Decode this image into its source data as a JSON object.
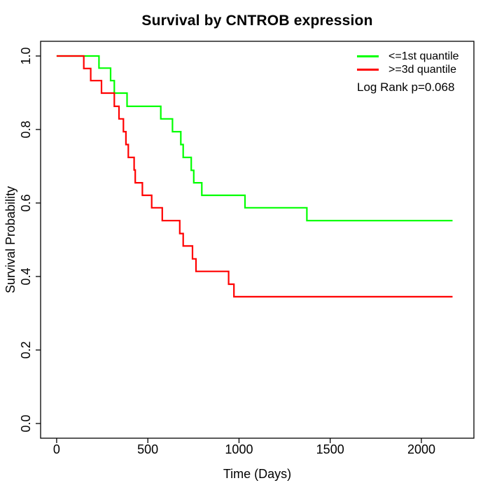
{
  "chart_data": {
    "type": "line",
    "subtype": "kaplan_meier_step",
    "title": "Survival by CNTROB expression",
    "xlabel": "Time (Days)",
    "ylabel": "Survival Probability",
    "xlim": [
      0,
      2200
    ],
    "ylim": [
      0.0,
      1.0
    ],
    "axis_padding_frac": 0.04,
    "grid": false,
    "axis_color": "#000000",
    "xticks": [
      {
        "v": 0,
        "label": "0"
      },
      {
        "v": 500,
        "label": "500"
      },
      {
        "v": 1000,
        "label": "1000"
      },
      {
        "v": 1500,
        "label": "1500"
      },
      {
        "v": 2000,
        "label": "2000"
      }
    ],
    "yticks": [
      {
        "v": 0.0,
        "label": "0.0"
      },
      {
        "v": 0.2,
        "label": "0.2"
      },
      {
        "v": 0.4,
        "label": "0.4"
      },
      {
        "v": 0.6,
        "label": "0.6"
      },
      {
        "v": 0.8,
        "label": "0.8"
      },
      {
        "v": 1.0,
        "label": "1.0"
      }
    ],
    "legend": {
      "position": "top-right",
      "entries": [
        {
          "label": "<=1st quantile",
          "color": "#00FF00"
        },
        {
          "label": ">=3d quantile",
          "color": "#FF0000"
        }
      ]
    },
    "annotation": "Log Rank p=0.068",
    "curve_end_time": 2171,
    "series": [
      {
        "name": "<=1st quantile",
        "color": "#00FF00",
        "points": [
          [
            0,
            1.0
          ],
          [
            232,
            0.967
          ],
          [
            296,
            0.933
          ],
          [
            316,
            0.899
          ],
          [
            386,
            0.863
          ],
          [
            571,
            0.829
          ],
          [
            635,
            0.794
          ],
          [
            681,
            0.759
          ],
          [
            694,
            0.724
          ],
          [
            738,
            0.689
          ],
          [
            752,
            0.655
          ],
          [
            796,
            0.621
          ],
          [
            1033,
            0.587
          ],
          [
            1372,
            0.552
          ]
        ]
      },
      {
        "name": ">=3d quantile",
        "color": "#FF0000",
        "points": [
          [
            0,
            1.0
          ],
          [
            149,
            0.966
          ],
          [
            187,
            0.933
          ],
          [
            246,
            0.899
          ],
          [
            316,
            0.863
          ],
          [
            342,
            0.829
          ],
          [
            366,
            0.794
          ],
          [
            380,
            0.759
          ],
          [
            393,
            0.724
          ],
          [
            425,
            0.69
          ],
          [
            431,
            0.655
          ],
          [
            470,
            0.621
          ],
          [
            521,
            0.587
          ],
          [
            579,
            0.552
          ],
          [
            675,
            0.517
          ],
          [
            694,
            0.483
          ],
          [
            745,
            0.448
          ],
          [
            764,
            0.414
          ],
          [
            943,
            0.379
          ],
          [
            972,
            0.345
          ]
        ]
      }
    ]
  }
}
